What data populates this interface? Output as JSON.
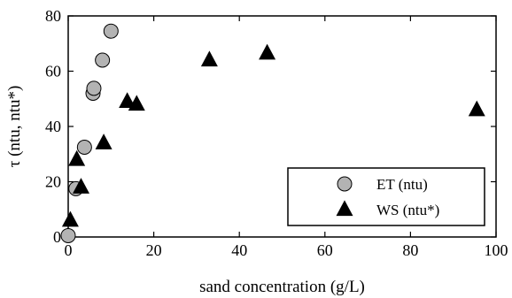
{
  "chart_data": {
    "type": "scatter",
    "title": "",
    "xlabel": "sand concentration (g/L)",
    "ylabel": "τ  (ntu, ntu*)",
    "xlim": [
      0,
      100
    ],
    "ylim": [
      0,
      80
    ],
    "xticks": [
      "0",
      "20",
      "40",
      "60",
      "80",
      "100"
    ],
    "yticks": [
      "0",
      "20",
      "40",
      "60",
      "80"
    ],
    "grid": false,
    "legend_position": "lower-right",
    "series": [
      {
        "name": "ET (ntu)",
        "marker": "circle",
        "color": "#b3b3b3",
        "points": [
          {
            "x": 0.0,
            "y": 0.5
          },
          {
            "x": 1.8,
            "y": 17.5
          },
          {
            "x": 3.8,
            "y": 32.5
          },
          {
            "x": 5.8,
            "y": 52.0
          },
          {
            "x": 6.0,
            "y": 53.8
          },
          {
            "x": 8.0,
            "y": 64.0
          },
          {
            "x": 10.0,
            "y": 74.5
          }
        ]
      },
      {
        "name": "WS (ntu*)",
        "marker": "triangle",
        "color": "#000000",
        "points": [
          {
            "x": 0.5,
            "y": 6.0
          },
          {
            "x": 2.0,
            "y": 28.0
          },
          {
            "x": 3.0,
            "y": 18.0
          },
          {
            "x": 8.3,
            "y": 34.0
          },
          {
            "x": 13.8,
            "y": 49.0
          },
          {
            "x": 16.0,
            "y": 48.0
          },
          {
            "x": 33.0,
            "y": 64.0
          },
          {
            "x": 46.5,
            "y": 66.5
          },
          {
            "x": 95.5,
            "y": 46.0
          }
        ]
      }
    ]
  }
}
